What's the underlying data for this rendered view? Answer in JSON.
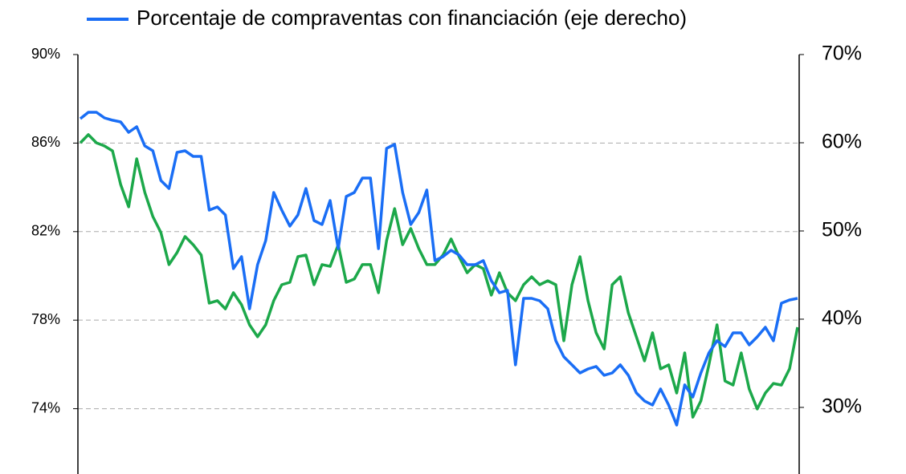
{
  "chart_data": {
    "type": "line",
    "categories": [
      null,
      null,
      null,
      null,
      null,
      null,
      null,
      null,
      null,
      null,
      null,
      null,
      null,
      null,
      null,
      null,
      null,
      null,
      null,
      null,
      null,
      null,
      null,
      null,
      null,
      null,
      null,
      null,
      null,
      null,
      null,
      null,
      null,
      null,
      null,
      null,
      null,
      null,
      null,
      null,
      null,
      null,
      null,
      null,
      null,
      null,
      null,
      null,
      null,
      null,
      null,
      null,
      null,
      null,
      null,
      null,
      null,
      null,
      null,
      null,
      null,
      null,
      null,
      null,
      null,
      null,
      null,
      null,
      null,
      null,
      null,
      null,
      null,
      null,
      null,
      null,
      null,
      null,
      null,
      null,
      null,
      null,
      null,
      null,
      null,
      null,
      null,
      null,
      null,
      null
    ],
    "series": [
      {
        "color": "#1ca84a",
        "values": [
          86.01,
          86.38,
          86.01,
          85.87,
          85.65,
          84.13,
          83.12,
          85.29,
          83.77,
          82.68,
          81.96,
          80.51,
          81.05,
          81.78,
          81.41,
          80.94,
          78.77,
          78.88,
          78.51,
          79.24,
          78.7,
          77.79,
          77.25,
          77.79,
          78.88,
          79.6,
          79.71,
          80.87,
          80.94,
          79.6,
          80.51,
          80.43,
          81.41,
          79.71,
          79.86,
          80.51,
          80.51,
          79.24,
          81.59,
          83.04,
          81.41,
          82.14,
          81.23,
          80.51,
          80.51,
          80.94,
          81.67,
          80.87,
          80.14,
          80.51,
          80.33,
          79.13,
          80.14,
          79.24,
          78.88,
          79.6,
          79.96,
          79.6,
          79.78,
          79.6,
          77.07,
          79.6,
          80.87,
          78.88,
          77.43,
          76.7,
          79.6,
          79.96,
          78.33,
          77.25,
          76.16,
          77.43,
          75.8,
          75.98,
          74.71,
          76.52,
          73.62,
          74.35,
          75.98,
          77.79,
          75.25,
          75.07,
          76.52,
          74.89,
          73.99,
          74.71,
          75.14,
          75.07,
          75.8,
          77.68
        ]
      },
      {
        "name": "Porcentaje de compraventas con financiación (eje derecho)",
        "color": "#1a6ef5",
        "axis": "y2",
        "values": [
          62.73,
          63.45,
          63.45,
          62.82,
          62.55,
          62.36,
          61.18,
          61.82,
          59.64,
          59.09,
          55.73,
          54.82,
          58.91,
          59.09,
          58.45,
          58.45,
          52.36,
          52.73,
          51.82,
          45.73,
          47.09,
          41.18,
          46.18,
          48.91,
          54.36,
          52.36,
          50.55,
          51.82,
          54.82,
          51.18,
          50.73,
          53.45,
          48.0,
          53.91,
          54.36,
          56.0,
          56.0,
          48.0,
          59.36,
          59.82,
          54.36,
          50.73,
          52.09,
          54.64,
          46.64,
          47.09,
          47.82,
          47.27,
          46.18,
          46.18,
          46.64,
          44.36,
          43.0,
          43.27,
          34.82,
          42.36,
          42.36,
          42.09,
          41.18,
          37.55,
          35.73,
          34.82,
          33.91,
          34.36,
          34.64,
          33.64,
          33.91,
          34.82,
          33.64,
          31.64,
          30.73,
          30.27,
          32.09,
          30.27,
          28.0,
          32.55,
          31.18,
          33.91,
          36.18,
          37.55,
          36.91,
          38.45,
          38.45,
          37.09,
          38.0,
          39.09,
          37.55,
          41.82,
          42.18,
          42.36
        ]
      }
    ],
    "ylim": [
      71.05,
      90
    ],
    "yticks": [
      {
        "value": 74,
        "label": "74%"
      },
      {
        "value": 78,
        "label": "78%"
      },
      {
        "value": 82,
        "label": "82%"
      },
      {
        "value": 86,
        "label": "86%"
      },
      {
        "value": 90,
        "label": "90%"
      }
    ],
    "y2lim": [
      22.45,
      70
    ],
    "y2ticks": [
      {
        "value": 30,
        "label": "30%"
      },
      {
        "value": 40,
        "label": "40%"
      },
      {
        "value": 50,
        "label": "50%"
      },
      {
        "value": 60,
        "label": "60%"
      },
      {
        "value": 70,
        "label": "70%"
      }
    ],
    "grid": true
  }
}
